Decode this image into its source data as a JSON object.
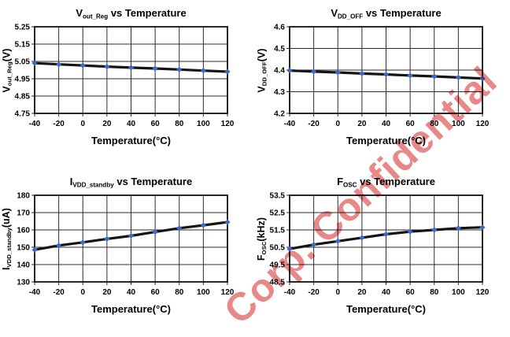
{
  "watermark": {
    "text": "Corp. Confidential",
    "color": "#e05a5a",
    "angle_deg": -43
  },
  "colors": {
    "line": "#141414",
    "marker": "#3a6bcb",
    "grid": "#2b2b2b",
    "border": "#111111",
    "tick_text": "#000000",
    "background": "#ffffff"
  },
  "chart_data": [
    {
      "type": "line",
      "title": {
        "main": "V",
        "sub": "out_Reg",
        "rest": " vs Temperature"
      },
      "ylabel": {
        "main": "V",
        "sub": "out_Reg",
        "rest": "(V)"
      },
      "xlabel": "Temperature(°C)",
      "x": [
        -40,
        -20,
        0,
        20,
        40,
        60,
        80,
        100,
        120
      ],
      "xtick_labels": [
        "-40",
        "-20",
        "0",
        "20",
        "40",
        "60",
        "80",
        "100",
        "120"
      ],
      "values": [
        5.04,
        5.033,
        5.027,
        5.02,
        5.014,
        5.009,
        5.003,
        4.997,
        4.991
      ],
      "ylim": [
        4.75,
        5.25
      ],
      "yticks": [
        4.75,
        4.85,
        4.95,
        5.05,
        5.15,
        5.25
      ],
      "ytick_labels": [
        "4.75",
        "4.85",
        "4.95",
        "5.05",
        "5.15",
        "5.25"
      ],
      "grid": true,
      "legend": "none"
    },
    {
      "type": "line",
      "title": {
        "main": "V",
        "sub": "DD_OFF",
        "rest": " vs Temperature"
      },
      "ylabel": {
        "main": "V",
        "sub": "DD_OFF",
        "rest": "(V)"
      },
      "xlabel": "Temperature(°C)",
      "x": [
        -40,
        -20,
        0,
        20,
        40,
        60,
        80,
        100,
        120
      ],
      "xtick_labels": [
        "-40",
        "-20",
        "0",
        "20",
        "40",
        "60",
        "80",
        "100",
        "120"
      ],
      "values": [
        4.398,
        4.393,
        4.389,
        4.384,
        4.38,
        4.375,
        4.371,
        4.366,
        4.361
      ],
      "ylim": [
        4.2,
        4.6
      ],
      "yticks": [
        4.2,
        4.3,
        4.4,
        4.5,
        4.6
      ],
      "ytick_labels": [
        "4.2",
        "4.3",
        "4.4",
        "4.5",
        "4.6"
      ],
      "grid": true,
      "legend": "none"
    },
    {
      "type": "line",
      "title": {
        "main": "I",
        "sub": "VDD_standby",
        "rest": " vs Temperature"
      },
      "ylabel": {
        "main": "I",
        "sub": "VDD_standby",
        "rest": "(uA)"
      },
      "xlabel": "Temperature(°C)",
      "x": [
        -40,
        -20,
        0,
        20,
        40,
        60,
        80,
        100,
        120
      ],
      "xtick_labels": [
        "-40",
        "-20",
        "0",
        "20",
        "40",
        "60",
        "80",
        "100",
        "120"
      ],
      "values": [
        148.5,
        151.0,
        152.8,
        154.8,
        156.6,
        158.8,
        161.0,
        162.7,
        164.5
      ],
      "ylim": [
        130,
        180
      ],
      "yticks": [
        130,
        140,
        150,
        160,
        170,
        180
      ],
      "ytick_labels": [
        "130",
        "140",
        "150",
        "160",
        "170",
        "180"
      ],
      "grid": true,
      "legend": "none"
    },
    {
      "type": "line",
      "title": {
        "main": "F",
        "sub": "OSC",
        "rest": " vs Temperature"
      },
      "ylabel": {
        "main": "F",
        "sub": "OSC",
        "rest": "(kHz)"
      },
      "xlabel": "Temperature(°C)",
      "x": [
        -40,
        -20,
        0,
        20,
        40,
        60,
        80,
        100,
        120
      ],
      "xtick_labels": [
        "-40",
        "-20",
        "0",
        "20",
        "40",
        "60",
        "80",
        "100",
        "120"
      ],
      "values": [
        50.4,
        50.65,
        50.85,
        51.05,
        51.25,
        51.4,
        51.5,
        51.6,
        51.65
      ],
      "ylim": [
        48.5,
        53.5
      ],
      "yticks": [
        48.5,
        49.5,
        50.5,
        51.5,
        52.5,
        53.5
      ],
      "ytick_labels": [
        "48.5",
        "49.5",
        "50.5",
        "51.5",
        "52.5",
        "53.5"
      ],
      "grid": true,
      "legend": "none"
    }
  ]
}
